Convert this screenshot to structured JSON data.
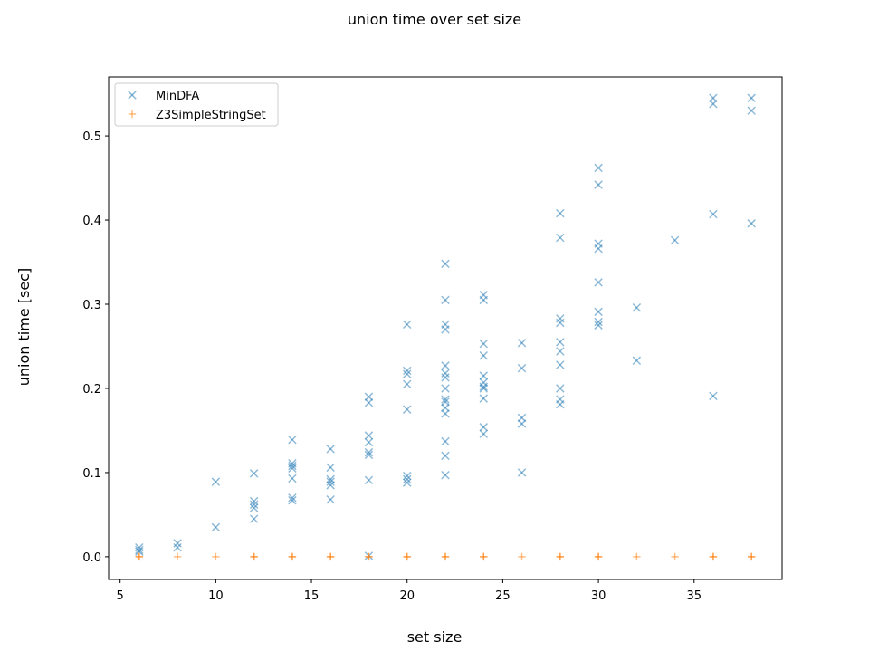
{
  "chart_data": {
    "type": "scatter",
    "title": "union time over set size",
    "xlabel": "set size",
    "ylabel": "union time [sec]",
    "xlim": [
      4.4,
      39.6
    ],
    "ylim": [
      -0.027,
      0.57
    ],
    "xticks": [
      5,
      10,
      15,
      20,
      25,
      30,
      35
    ],
    "yticks": [
      0.0,
      0.1,
      0.2,
      0.3,
      0.4,
      0.5
    ],
    "grid": false,
    "legend_position": "top-left",
    "series": [
      {
        "name": "MinDFA",
        "marker": "x",
        "color": "#1f77b4",
        "points": [
          [
            6,
            0.011
          ],
          [
            6,
            0.008
          ],
          [
            6,
            0.006
          ],
          [
            8,
            0.016
          ],
          [
            8,
            0.011
          ],
          [
            10,
            0.089
          ],
          [
            10,
            0.035
          ],
          [
            12,
            0.099
          ],
          [
            12,
            0.066
          ],
          [
            12,
            0.062
          ],
          [
            12,
            0.058
          ],
          [
            12,
            0.045
          ],
          [
            14,
            0.139
          ],
          [
            14,
            0.111
          ],
          [
            14,
            0.108
          ],
          [
            14,
            0.105
          ],
          [
            14,
            0.093
          ],
          [
            14,
            0.07
          ],
          [
            14,
            0.067
          ],
          [
            16,
            0.128
          ],
          [
            16,
            0.106
          ],
          [
            16,
            0.092
          ],
          [
            16,
            0.089
          ],
          [
            16,
            0.085
          ],
          [
            16,
            0.068
          ],
          [
            18,
            0.19
          ],
          [
            18,
            0.183
          ],
          [
            18,
            0.144
          ],
          [
            18,
            0.136
          ],
          [
            18,
            0.124
          ],
          [
            18,
            0.121
          ],
          [
            18,
            0.091
          ],
          [
            18,
            0.001
          ],
          [
            20,
            0.276
          ],
          [
            20,
            0.221
          ],
          [
            20,
            0.217
          ],
          [
            20,
            0.205
          ],
          [
            20,
            0.175
          ],
          [
            20,
            0.096
          ],
          [
            20,
            0.092
          ],
          [
            20,
            0.088
          ],
          [
            22,
            0.348
          ],
          [
            22,
            0.305
          ],
          [
            22,
            0.276
          ],
          [
            22,
            0.27
          ],
          [
            22,
            0.227
          ],
          [
            22,
            0.218
          ],
          [
            22,
            0.213
          ],
          [
            22,
            0.2
          ],
          [
            22,
            0.187
          ],
          [
            22,
            0.184
          ],
          [
            22,
            0.177
          ],
          [
            22,
            0.17
          ],
          [
            22,
            0.137
          ],
          [
            22,
            0.12
          ],
          [
            22,
            0.097
          ],
          [
            24,
            0.311
          ],
          [
            24,
            0.305
          ],
          [
            24,
            0.253
          ],
          [
            24,
            0.239
          ],
          [
            24,
            0.215
          ],
          [
            24,
            0.207
          ],
          [
            24,
            0.202
          ],
          [
            24,
            0.2
          ],
          [
            24,
            0.188
          ],
          [
            24,
            0.154
          ],
          [
            24,
            0.146
          ],
          [
            26,
            0.254
          ],
          [
            26,
            0.224
          ],
          [
            26,
            0.165
          ],
          [
            26,
            0.158
          ],
          [
            26,
            0.1
          ],
          [
            28,
            0.408
          ],
          [
            28,
            0.379
          ],
          [
            28,
            0.283
          ],
          [
            28,
            0.278
          ],
          [
            28,
            0.255
          ],
          [
            28,
            0.244
          ],
          [
            28,
            0.228
          ],
          [
            28,
            0.2
          ],
          [
            28,
            0.187
          ],
          [
            28,
            0.181
          ],
          [
            30,
            0.462
          ],
          [
            30,
            0.442
          ],
          [
            30,
            0.372
          ],
          [
            30,
            0.366
          ],
          [
            30,
            0.326
          ],
          [
            30,
            0.291
          ],
          [
            30,
            0.279
          ],
          [
            30,
            0.275
          ],
          [
            32,
            0.296
          ],
          [
            32,
            0.233
          ],
          [
            34,
            0.376
          ],
          [
            36,
            0.545
          ],
          [
            36,
            0.538
          ],
          [
            36,
            0.407
          ],
          [
            36,
            0.191
          ],
          [
            38,
            0.545
          ],
          [
            38,
            0.53
          ],
          [
            38,
            0.396
          ]
        ]
      },
      {
        "name": "Z3SimpleStringSet",
        "marker": "+",
        "color": "#ff7f0e",
        "points": [
          [
            6,
            0.0
          ],
          [
            6,
            0.0
          ],
          [
            8,
            0.0
          ],
          [
            10,
            0.0
          ],
          [
            12,
            0.0
          ],
          [
            12,
            0.0
          ],
          [
            14,
            0.0
          ],
          [
            14,
            0.0
          ],
          [
            16,
            0.0
          ],
          [
            16,
            0.0
          ],
          [
            18,
            0.0
          ],
          [
            18,
            0.0
          ],
          [
            20,
            0.0
          ],
          [
            20,
            0.0
          ],
          [
            22,
            0.0
          ],
          [
            22,
            0.0
          ],
          [
            24,
            0.0
          ],
          [
            24,
            0.0
          ],
          [
            26,
            0.0
          ],
          [
            28,
            0.0
          ],
          [
            28,
            0.0
          ],
          [
            30,
            0.0
          ],
          [
            30,
            0.0
          ],
          [
            32,
            0.0
          ],
          [
            34,
            0.0
          ],
          [
            36,
            0.0
          ],
          [
            36,
            0.0
          ],
          [
            38,
            0.0
          ],
          [
            38,
            0.0
          ]
        ]
      }
    ]
  }
}
